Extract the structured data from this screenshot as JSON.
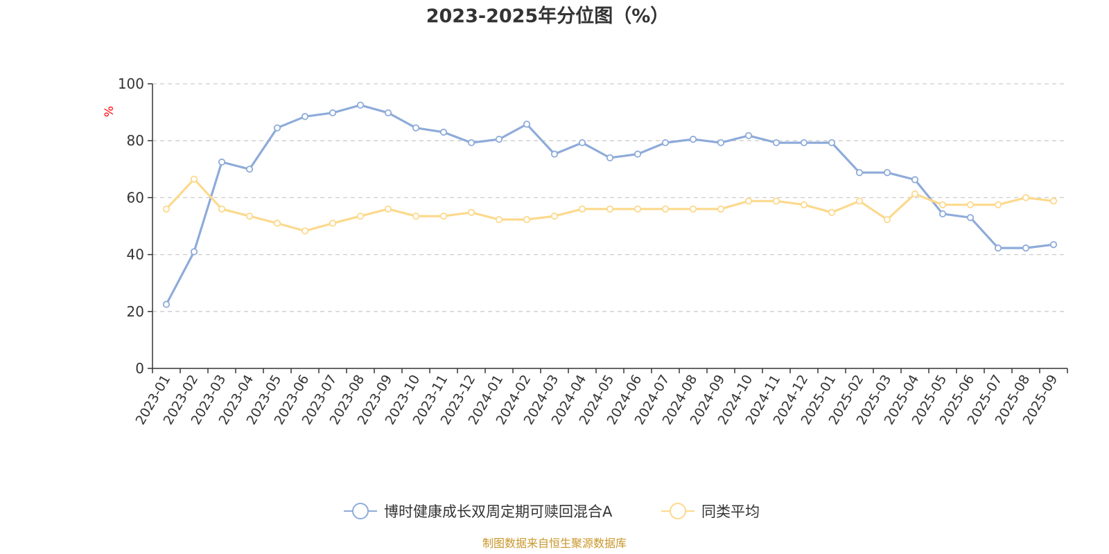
{
  "chart_data": {
    "type": "line",
    "title": "2023-2025年分位图（%）",
    "ylabel": "%",
    "xlabel": "",
    "ylim": [
      0,
      100
    ],
    "yticks": [
      0,
      20,
      40,
      60,
      80,
      100
    ],
    "grid": true,
    "legend_position": "bottom",
    "categories": [
      "2023-01",
      "2023-02",
      "2023-03",
      "2023-04",
      "2023-05",
      "2023-06",
      "2023-07",
      "2023-08",
      "2023-09",
      "2023-10",
      "2023-11",
      "2023-12",
      "2024-01",
      "2024-02",
      "2024-03",
      "2024-04",
      "2024-05",
      "2024-06",
      "2024-07",
      "2024-08",
      "2024-09",
      "2024-10",
      "2024-11",
      "2024-12",
      "2025-01",
      "2025-02",
      "2025-03",
      "2025-04",
      "2025-05",
      "2025-06",
      "2025-07",
      "2025-08",
      "2025-09"
    ],
    "series": [
      {
        "name": "博时健康成长双周定期可赎回混合A",
        "color": "#8eabd9",
        "values": [
          22.5,
          41,
          72.5,
          70,
          84.5,
          88.5,
          89.8,
          92.5,
          89.8,
          84.5,
          83,
          79.3,
          80.5,
          85.8,
          75.3,
          79.3,
          74,
          75.3,
          79.3,
          80.5,
          79.3,
          81.8,
          79.3,
          79.3,
          79.3,
          68.8,
          68.8,
          66.3,
          54.3,
          53,
          42.3,
          42.3,
          43.5
        ]
      },
      {
        "name": "同类平均",
        "color": "#fcd98c",
        "values": [
          56,
          66.5,
          56,
          53.5,
          51,
          48.3,
          51,
          53.5,
          56,
          53.5,
          53.5,
          54.8,
          52.3,
          52.3,
          53.5,
          56,
          56,
          56,
          56,
          56,
          56,
          58.8,
          58.8,
          57.5,
          54.8,
          58.8,
          52.3,
          61.3,
          57.5,
          57.5,
          57.5,
          60,
          58.8
        ]
      }
    ]
  },
  "source_text": "制图数据来自恒生聚源数据库"
}
